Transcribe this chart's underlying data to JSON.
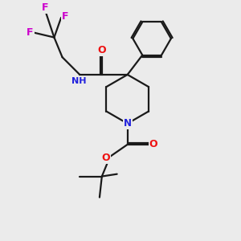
{
  "background_color": "#ebebeb",
  "bond_color": "#1a1a1a",
  "nitrogen_color": "#2020dd",
  "oxygen_color": "#ee1111",
  "fluorine_color": "#cc00cc",
  "bond_width": 1.6,
  "figsize": [
    3.0,
    3.0
  ],
  "dpi": 100,
  "xlim": [
    0,
    10
  ],
  "ylim": [
    0,
    10
  ]
}
